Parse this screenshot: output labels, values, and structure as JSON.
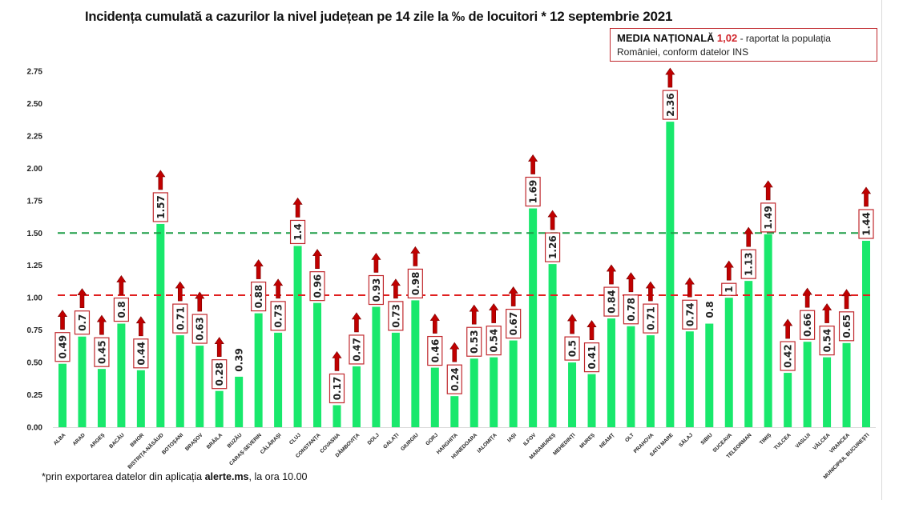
{
  "title": {
    "main": "Incidența cumulată a cazurilor la nivel județean pe 14 zile la ‰ de locuitori *",
    "date": "12 septembrie 2021"
  },
  "media_box": {
    "label": "MEDIA NAȚIONALĂ",
    "value": "1,02",
    "text": " - raportat la populația României, conform datelor INS"
  },
  "footnote": {
    "prefix": "*prin exportarea datelor din aplicația ",
    "app": "alerte.ms",
    "suffix": ", la ora 10.00"
  },
  "colors": {
    "bar": "#19e86c",
    "label_box": "#c0282d",
    "arrow": "#c00000",
    "national_line": "#e02020",
    "threshold_line": "#1e9e48"
  },
  "chart_data": {
    "type": "bar",
    "title": "Incidența cumulată a cazurilor la nivel județean pe 14 zile la ‰ de locuitori * 12 septembrie 2021",
    "xlabel": "",
    "ylabel": "",
    "ylim": [
      0,
      2.75
    ],
    "yticks": [
      "0.00",
      "0.25",
      "0.50",
      "0.75",
      "1.00",
      "1.25",
      "1.50",
      "1.75",
      "2.00",
      "2.25",
      "2.50",
      "2.75"
    ],
    "ytick_values": [
      0,
      0.25,
      0.5,
      0.75,
      1.0,
      1.25,
      1.5,
      1.75,
      2.0,
      2.25,
      2.5,
      2.75
    ],
    "grid": false,
    "reference_lines": [
      {
        "name": "Media națională",
        "value": 1.02,
        "style": "dashed",
        "color": "#e02020"
      },
      {
        "name": "Prag 1.5",
        "value": 1.5,
        "style": "dashed",
        "color": "#1e9e48"
      }
    ],
    "categories": [
      "ALBA",
      "ARAD",
      "ARGEȘ",
      "BACĂU",
      "BIHOR",
      "BISTRIȚA-NĂSĂUD",
      "BOTOȘANI",
      "BRAȘOV",
      "BRĂILA",
      "BUZĂU",
      "CARAȘ-SEVERIN",
      "CĂLĂRAȘI",
      "CLUJ",
      "CONSTANȚA",
      "COVASNA",
      "DÂMBOVIȚA",
      "DOLJ",
      "GALAȚI",
      "GIURGIU",
      "GORJ",
      "HARGHITA",
      "HUNEDOARA",
      "IALOMIȚA",
      "IAȘI",
      "ILFOV",
      "MARAMUREȘ",
      "MEHEDINȚI",
      "MUREȘ",
      "NEAMȚ",
      "OLT",
      "PRAHOVA",
      "SATU MARE",
      "SĂLAJ",
      "SIBIU",
      "SUCEAVA",
      "TELEORMAN",
      "TIMIȘ",
      "TULCEA",
      "VASLUI",
      "VÂLCEA",
      "VRANCEA",
      "MUNICIPIUL BUCUREȘTI"
    ],
    "values": [
      0.49,
      0.7,
      0.45,
      0.8,
      0.44,
      1.57,
      0.71,
      0.63,
      0.28,
      0.39,
      0.88,
      0.73,
      1.4,
      0.96,
      0.17,
      0.47,
      0.93,
      0.73,
      0.98,
      0.46,
      0.24,
      0.53,
      0.54,
      0.67,
      1.69,
      1.26,
      0.5,
      0.41,
      0.84,
      0.78,
      0.71,
      2.36,
      0.74,
      0.8,
      1,
      1.13,
      1.49,
      0.42,
      0.66,
      0.54,
      0.65,
      1.44
    ],
    "labels": [
      "0.49",
      "0.7",
      "0.45",
      "0.8",
      "0.44",
      "1.57",
      "0.71",
      "0.63",
      "0.28",
      "0.39",
      "0.88",
      "0.73",
      "1.4",
      "0.96",
      "0.17",
      "0.47",
      "0.93",
      "0.73",
      "0.98",
      "0.46",
      "0.24",
      "0.53",
      "0.54",
      "0.67",
      "1.69",
      "1.26",
      "0.5",
      "0.41",
      "0.84",
      "0.78",
      "0.71",
      "2.36",
      "0.74",
      "0.8",
      "1",
      "1.13",
      "1.49",
      "0.42",
      "0.66",
      "0.54",
      "0.65",
      "1.44"
    ],
    "trend_up": [
      true,
      true,
      true,
      true,
      true,
      true,
      true,
      true,
      true,
      false,
      true,
      true,
      true,
      true,
      true,
      true,
      true,
      true,
      true,
      true,
      true,
      true,
      true,
      true,
      true,
      true,
      true,
      true,
      true,
      true,
      true,
      true,
      true,
      false,
      true,
      true,
      true,
      true,
      true,
      true,
      true,
      true
    ]
  }
}
